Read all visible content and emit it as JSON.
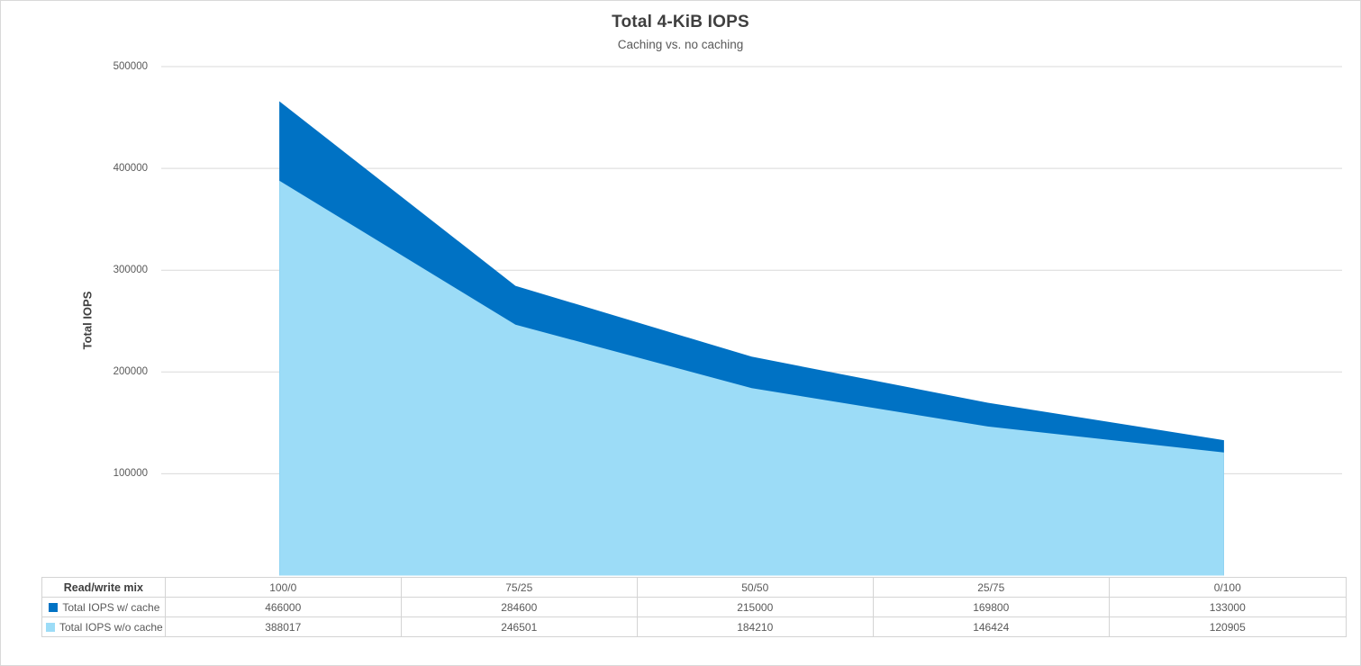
{
  "chart_data": {
    "type": "area",
    "title": "Total 4-KiB IOPS",
    "subtitle": "Caching vs. no caching",
    "ylabel": "Total IOPS",
    "xlabel": "Read/write mix",
    "categories": [
      "100/0",
      "75/25",
      "50/50",
      "25/75",
      "0/100"
    ],
    "series": [
      {
        "name": "Total IOPS w/ cache",
        "color": "#0072C4",
        "values": [
          466000,
          284600,
          215000,
          169800,
          133000
        ]
      },
      {
        "name": "Total IOPS w/o cache",
        "color": "#9CDCF7",
        "values": [
          388017,
          246501,
          184210,
          146424,
          120905
        ]
      }
    ],
    "ylim": [
      0,
      500000
    ],
    "y_ticks": [
      100000,
      200000,
      300000,
      400000,
      500000
    ],
    "y_tick_labels": [
      "500000",
      "400000",
      "300000",
      "200000",
      "100000"
    ],
    "grid": true,
    "gridline_color": "#D9D9D9",
    "legend_position": "table-rows-left"
  },
  "table": {
    "header_label": "Read/write mix",
    "categories": [
      "100/0",
      "75/25",
      "50/50",
      "25/75",
      "0/100"
    ],
    "rows": [
      {
        "label": "Total IOPS w/ cache",
        "values": [
          "466000",
          "284600",
          "215000",
          "169800",
          "133000"
        ]
      },
      {
        "label": "Total IOPS w/o cache",
        "values": [
          "388017",
          "246501",
          "184210",
          "146424",
          "120905"
        ]
      }
    ]
  }
}
